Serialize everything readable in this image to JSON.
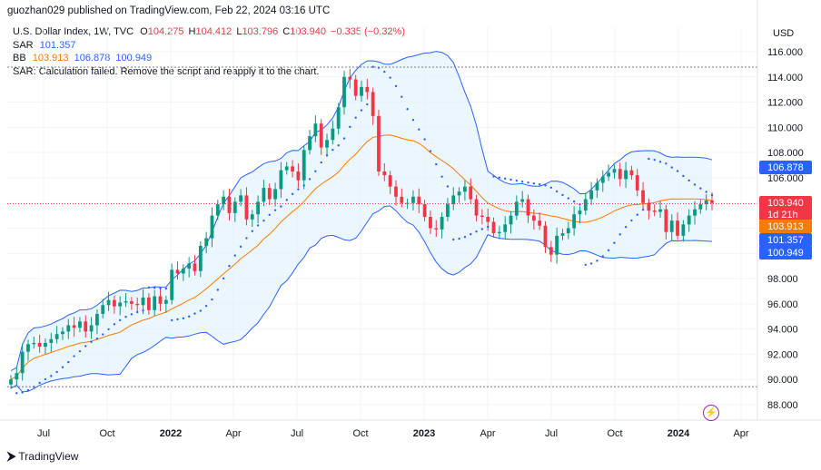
{
  "header": {
    "published_line": "guozhan029 published on TradingView.com, Feb 22, 2024 03:16 UTC"
  },
  "legend": {
    "symbol": "U.S. Dollar Index, 1W, TVC",
    "ohlc": {
      "o_label": "O",
      "o": "104.275",
      "h_label": "H",
      "h": "104.412",
      "l_label": "L",
      "l": "103.796",
      "c_label": "C",
      "c": "103.940",
      "change": "−0.335 (−0.32%)"
    },
    "sar_label": "SAR",
    "sar_value": "101.357",
    "bb_label": "BB",
    "bb_basis": "103.913",
    "bb_upper": "106.878",
    "bb_lower": "100.949",
    "error_text": "SAR: Calculation failed. Remove the script and reapply it to the chart."
  },
  "axis": {
    "currency": "USD",
    "y_ticks": [
      "116.000",
      "114.000",
      "112.000",
      "110.000",
      "108.000",
      "106.000",
      "104.000",
      "102.000",
      "100.000",
      "98.000",
      "96.000",
      "94.000",
      "92.000",
      "90.000",
      "88.000"
    ],
    "x_ticks": [
      {
        "label": "Jul",
        "bold": false
      },
      {
        "label": "Oct",
        "bold": false
      },
      {
        "label": "2022",
        "bold": true
      },
      {
        "label": "Apr",
        "bold": false
      },
      {
        "label": "Jul",
        "bold": false
      },
      {
        "label": "Oct",
        "bold": false
      },
      {
        "label": "2023",
        "bold": true
      },
      {
        "label": "Apr",
        "bold": false
      },
      {
        "label": "Jul",
        "bold": false
      },
      {
        "label": "Oct",
        "bold": false
      },
      {
        "label": "2024",
        "bold": true
      },
      {
        "label": "Apr",
        "bold": false
      }
    ],
    "price_tags": {
      "upper": {
        "value": "106.878",
        "color": "#2962ff"
      },
      "close": {
        "value": "103.940",
        "countdown": "1d 21h",
        "color": "#f23645"
      },
      "basis": {
        "value": "103.913",
        "color": "#f57c00"
      },
      "sar": {
        "value": "101.357",
        "color": "#2962ff"
      },
      "lower": {
        "value": "100.949",
        "color": "#2962ff"
      }
    }
  },
  "colors": {
    "up": "#089981",
    "down": "#f23645",
    "basis": "#f57c00",
    "bands": "#2962ff",
    "fill": "#e3f2fd",
    "sar": "#2962ff"
  },
  "footer": {
    "brand": "TradingView"
  },
  "chart_data": {
    "type": "candlestick",
    "title": "U.S. Dollar Index, 1W, TVC",
    "ylabel": "USD",
    "ylim": [
      87.0,
      117.0
    ],
    "x_range": [
      "2021-06",
      "2024-04"
    ],
    "close_series_approx": [
      90.0,
      90.5,
      92.2,
      92.8,
      92.9,
      92.6,
      92.9,
      93.2,
      93.6,
      93.8,
      94.3,
      94.1,
      94.6,
      93.8,
      94.3,
      95.2,
      95.9,
      96.3,
      95.8,
      96.1,
      96.2,
      96.0,
      95.9,
      96.5,
      95.5,
      96.6,
      96.0,
      96.3,
      98.7,
      98.4,
      98.8,
      99.2,
      98.6,
      100.6,
      101.2,
      103.0,
      103.9,
      104.5,
      103.2,
      104.1,
      104.6,
      102.7,
      103.1,
      104.1,
      105.2,
      104.3,
      105.1,
      106.6,
      106.9,
      106.5,
      105.8,
      108.2,
      109.3,
      110.3,
      108.4,
      109.0,
      109.9,
      111.6,
      114.0,
      113.8,
      112.5,
      113.2,
      112.8,
      110.9,
      106.5,
      106.2,
      105.3,
      104.5,
      104.0,
      104.0,
      104.5,
      103.9,
      102.9,
      102.0,
      101.9,
      102.9,
      103.9,
      104.6,
      104.9,
      105.3,
      104.3,
      103.0,
      102.9,
      102.5,
      101.6,
      101.7,
      102.3,
      103.0,
      104.1,
      104.3,
      103.0,
      102.6,
      102.2,
      100.5,
      99.9,
      101.4,
      101.6,
      102.0,
      103.1,
      103.4,
      104.3,
      105.0,
      105.6,
      106.1,
      106.4,
      106.7,
      105.9,
      106.6,
      106.2,
      105.0,
      104.0,
      103.4,
      103.3,
      103.5,
      101.7,
      102.6,
      101.4,
      102.3,
      103.0,
      103.5,
      103.9,
      104.2,
      104.0
    ]
  }
}
